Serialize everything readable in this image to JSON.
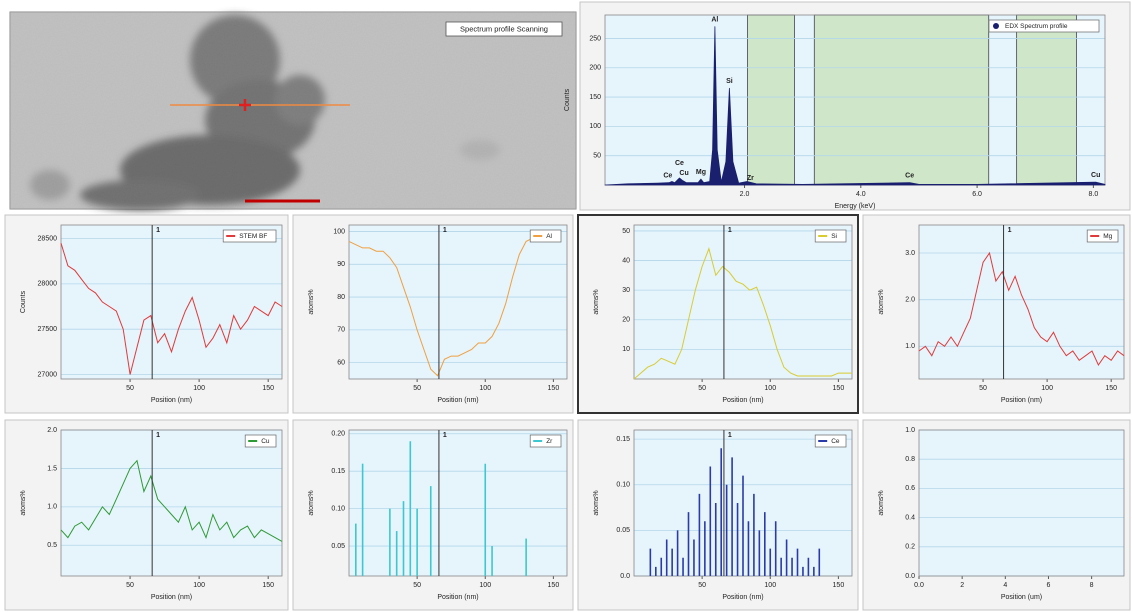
{
  "image_panel": {
    "label": "Spectrum profile Scanning"
  },
  "chart_data": [
    {
      "type": "area",
      "xlabel": "Energy (keV)",
      "ylabel": "Counts",
      "xlim": [
        -0.4,
        8.2
      ],
      "ylim": [
        0,
        290
      ],
      "xticks": [
        {
          "value": 2,
          "label": "2.0"
        },
        {
          "value": 4,
          "label": "4.0"
        },
        {
          "value": 6,
          "label": "6.0"
        },
        {
          "value": 8,
          "label": "8.0"
        }
      ],
      "yticks": [
        50,
        100,
        150,
        200,
        250
      ],
      "highlight_ranges": [
        [
          2.05,
          2.86
        ],
        [
          3.2,
          6.2
        ],
        [
          6.68,
          7.71
        ]
      ],
      "x": [
        -0.4,
        0,
        0.5,
        0.7,
        0.75,
        0.8,
        0.88,
        0.93,
        1.0,
        1.2,
        1.25,
        1.3,
        1.4,
        1.45,
        1.49,
        1.53,
        1.6,
        1.68,
        1.74,
        1.8,
        1.9,
        2.04,
        2.2,
        3.0,
        4.84,
        5.0,
        6.0,
        8.04,
        8.2
      ],
      "series": [
        {
          "name": "EDX Spectrum profile",
          "color": "#1a1f6e",
          "values": [
            0,
            2,
            3,
            4,
            6,
            4,
            12,
            8,
            4,
            4,
            10,
            4,
            6,
            60,
            270,
            60,
            5,
            40,
            165,
            40,
            3,
            6,
            2,
            1,
            4,
            1,
            1,
            5,
            1
          ]
        }
      ],
      "annotations": [
        {
          "text": "Ce",
          "x": 0.68
        },
        {
          "text": "Ce",
          "x": 0.88
        },
        {
          "text": "Cu",
          "x": 0.96
        },
        {
          "text": "Mg",
          "x": 1.25
        },
        {
          "text": "Al",
          "x": 1.49
        },
        {
          "text": "Si",
          "x": 1.74
        },
        {
          "text": "Zr",
          "x": 2.1
        },
        {
          "text": "Ce",
          "x": 4.84
        },
        {
          "text": "Cu",
          "x": 8.04
        }
      ]
    },
    {
      "type": "line",
      "xlabel": "Position (nm)",
      "ylabel": "Counts",
      "xlim": [
        0,
        160
      ],
      "ylim": [
        26950,
        28650
      ],
      "xticks": [
        50,
        100,
        150
      ],
      "yticks": [
        27000,
        27500,
        28000,
        28500
      ],
      "cursor": {
        "x": 66,
        "label": "1"
      },
      "x": [
        0,
        5,
        10,
        15,
        20,
        25,
        30,
        35,
        40,
        45,
        50,
        55,
        60,
        65,
        70,
        75,
        80,
        85,
        90,
        95,
        100,
        105,
        110,
        115,
        120,
        125,
        130,
        135,
        140,
        145,
        150,
        155,
        160
      ],
      "series": [
        {
          "name": "STEM BF",
          "color": "#e03a3a",
          "values": [
            28450,
            28200,
            28150,
            28050,
            27950,
            27900,
            27800,
            27750,
            27700,
            27500,
            27000,
            27300,
            27600,
            27650,
            27350,
            27450,
            27250,
            27500,
            27700,
            27850,
            27600,
            27300,
            27400,
            27550,
            27350,
            27650,
            27500,
            27600,
            27750,
            27700,
            27650,
            27800,
            27750
          ]
        }
      ]
    },
    {
      "type": "line",
      "xlabel": "Position (nm)",
      "ylabel": "atoms%",
      "xlim": [
        0,
        160
      ],
      "ylim": [
        55,
        102
      ],
      "xticks": [
        50,
        100,
        150
      ],
      "yticks": [
        60,
        70,
        80,
        90,
        100
      ],
      "cursor": {
        "x": 66,
        "label": "1"
      },
      "x": [
        0,
        5,
        10,
        15,
        20,
        25,
        30,
        35,
        40,
        45,
        50,
        55,
        60,
        65,
        70,
        75,
        80,
        85,
        90,
        95,
        100,
        105,
        110,
        115,
        120,
        125,
        130,
        135
      ],
      "series": [
        {
          "name": "Al",
          "color": "#f0a040",
          "values": [
            97,
            96,
            95,
            95,
            94,
            94,
            92,
            89,
            83,
            77,
            70,
            64,
            58,
            56,
            61,
            62,
            62,
            63,
            64,
            66,
            66,
            68,
            72,
            78,
            86,
            93,
            97,
            98
          ]
        }
      ]
    },
    {
      "type": "line",
      "xlabel": "Position (nm)",
      "ylabel": "atoms%",
      "xlim": [
        0,
        160
      ],
      "ylim": [
        0,
        52
      ],
      "xticks": [
        50,
        100,
        150
      ],
      "yticks": [
        10,
        20,
        30,
        40,
        50
      ],
      "cursor": {
        "x": 66,
        "label": "1"
      },
      "x": [
        0,
        5,
        10,
        15,
        20,
        25,
        30,
        35,
        40,
        45,
        50,
        55,
        60,
        65,
        70,
        75,
        80,
        85,
        90,
        95,
        100,
        105,
        110,
        115,
        120,
        125,
        130,
        135,
        140,
        145,
        150,
        155,
        160
      ],
      "series": [
        {
          "name": "Si",
          "color": "#d8cc30",
          "values": [
            0,
            2,
            4,
            5,
            7,
            6,
            5,
            10,
            20,
            30,
            38,
            44,
            35,
            38,
            36,
            33,
            32,
            30,
            31,
            25,
            18,
            10,
            4,
            2,
            1,
            1,
            1,
            1,
            1,
            1,
            2,
            2,
            2
          ]
        }
      ]
    },
    {
      "type": "line",
      "xlabel": "Position (nm)",
      "ylabel": "atoms%",
      "xlim": [
        0,
        160
      ],
      "ylim": [
        0.3,
        3.6
      ],
      "xticks": [
        50,
        100,
        150
      ],
      "yticks": [
        {
          "value": 1,
          "label": "1.0"
        },
        {
          "value": 2,
          "label": "2.0"
        },
        {
          "value": 3,
          "label": "3.0"
        }
      ],
      "cursor": {
        "x": 66,
        "label": "1"
      },
      "x": [
        0,
        5,
        10,
        15,
        20,
        25,
        30,
        35,
        40,
        45,
        50,
        55,
        60,
        65,
        70,
        75,
        80,
        85,
        90,
        95,
        100,
        105,
        110,
        115,
        120,
        125,
        130,
        135,
        140,
        145,
        150,
        155,
        160
      ],
      "series": [
        {
          "name": "Mg",
          "color": "#e03a3a",
          "values": [
            0.9,
            1.0,
            0.8,
            1.1,
            1.0,
            1.2,
            1.0,
            1.3,
            1.6,
            2.2,
            2.8,
            3.0,
            2.4,
            2.6,
            2.2,
            2.5,
            2.1,
            1.8,
            1.4,
            1.2,
            1.1,
            1.3,
            1.0,
            0.8,
            0.9,
            0.7,
            0.8,
            0.9,
            0.6,
            0.8,
            0.7,
            0.9,
            0.8
          ]
        }
      ]
    },
    {
      "type": "line",
      "xlabel": "Position (nm)",
      "ylabel": "atoms%",
      "xlim": [
        0,
        160
      ],
      "ylim": [
        0.1,
        2.0
      ],
      "xticks": [
        50,
        100,
        150
      ],
      "yticks": [
        0.5,
        {
          "value": 1,
          "label": "1.0"
        },
        1.5,
        {
          "value": 2,
          "label": "2.0"
        }
      ],
      "cursor": {
        "x": 66,
        "label": "1"
      },
      "x": [
        0,
        5,
        10,
        15,
        20,
        25,
        30,
        35,
        40,
        45,
        50,
        55,
        60,
        65,
        70,
        75,
        80,
        85,
        90,
        95,
        100,
        105,
        110,
        115,
        120,
        125,
        130,
        135,
        140,
        145,
        150,
        155,
        160
      ],
      "series": [
        {
          "name": "Cu",
          "color": "#2e9a35",
          "values": [
            0.7,
            0.6,
            0.75,
            0.8,
            0.7,
            0.85,
            1.0,
            0.9,
            1.1,
            1.3,
            1.5,
            1.6,
            1.2,
            1.4,
            1.1,
            1.0,
            0.9,
            0.8,
            1.0,
            0.7,
            0.8,
            0.6,
            0.9,
            0.7,
            0.8,
            0.6,
            0.7,
            0.75,
            0.6,
            0.7,
            0.65,
            0.6,
            0.55
          ]
        }
      ]
    },
    {
      "type": "stem",
      "xlabel": "Position (nm)",
      "ylabel": "atoms%",
      "xlim": [
        0,
        160
      ],
      "ylim": [
        0.01,
        0.205
      ],
      "xticks": [
        50,
        100,
        150
      ],
      "yticks": [
        0.05,
        {
          "value": 0.1,
          "label": "0.10"
        },
        0.15,
        {
          "value": 0.2,
          "label": "0.20"
        }
      ],
      "cursor": {
        "x": 66,
        "label": "1"
      },
      "x": [
        5,
        10,
        30,
        35,
        40,
        45,
        50,
        60,
        100,
        105,
        130
      ],
      "series": [
        {
          "name": "Zr",
          "color": "#3cc8d0",
          "values": [
            0.08,
            0.16,
            0.1,
            0.07,
            0.11,
            0.19,
            0.1,
            0.13,
            0.16,
            0.05,
            0.06
          ]
        }
      ]
    },
    {
      "type": "stem",
      "xlabel": "Position (nm)",
      "ylabel": "atoms%",
      "xlim": [
        0,
        160
      ],
      "ylim": [
        0,
        0.16
      ],
      "xticks": [
        50,
        100,
        150
      ],
      "yticks": [
        {
          "value": 0,
          "label": "0.0"
        },
        0.05,
        {
          "value": 0.1,
          "label": "0.10"
        },
        0.15
      ],
      "cursor": {
        "x": 66,
        "label": "1"
      },
      "x": [
        12,
        16,
        20,
        24,
        28,
        32,
        36,
        40,
        44,
        48,
        52,
        56,
        60,
        64,
        68,
        72,
        76,
        80,
        84,
        88,
        92,
        96,
        100,
        104,
        108,
        112,
        116,
        120,
        124,
        128,
        132,
        136
      ],
      "series": [
        {
          "name": "Ce",
          "color": "#2a3aa8",
          "values": [
            0.03,
            0.01,
            0.02,
            0.04,
            0.03,
            0.05,
            0.02,
            0.07,
            0.04,
            0.09,
            0.06,
            0.12,
            0.08,
            0.14,
            0.1,
            0.13,
            0.08,
            0.11,
            0.06,
            0.09,
            0.05,
            0.07,
            0.03,
            0.06,
            0.02,
            0.04,
            0.02,
            0.03,
            0.01,
            0.02,
            0.01,
            0.03
          ]
        }
      ]
    },
    {
      "type": "line",
      "xlabel": "Position (um)",
      "ylabel": "atoms%",
      "xlim": [
        0,
        9.5
      ],
      "ylim": [
        0,
        1.0
      ],
      "xticks": [
        {
          "value": 0,
          "label": "0.0"
        },
        2,
        4,
        6,
        8
      ],
      "yticks": [
        {
          "value": 0,
          "label": "0.0"
        },
        0.2,
        0.4,
        0.6,
        0.8,
        {
          "value": 1,
          "label": "1.0"
        }
      ],
      "series": []
    }
  ]
}
